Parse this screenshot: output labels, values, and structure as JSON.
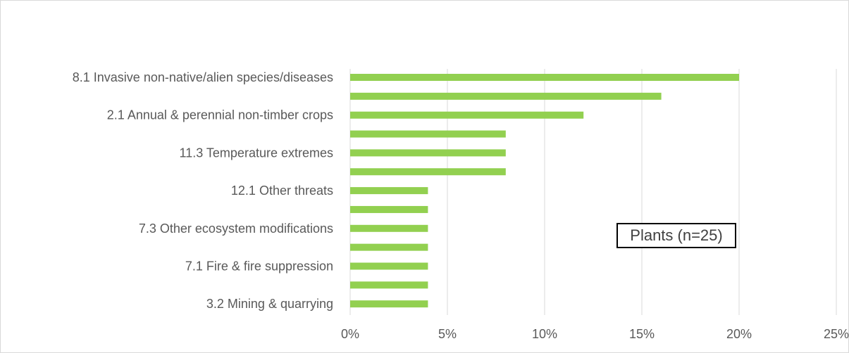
{
  "chart_data": {
    "type": "bar",
    "orientation": "horizontal",
    "categories": [
      "8.1 Invasive non-native/alien species/diseases",
      "",
      "2.1 Annual & perennial non-timber crops",
      "",
      "11.3 Temperature extremes",
      "",
      "12.1 Other threats",
      "",
      "7.3 Other ecosystem modifications",
      "",
      "7.1 Fire & fire suppression",
      "",
      "3.2 Mining & quarrying"
    ],
    "values": [
      20,
      16,
      12,
      8,
      8,
      8,
      4,
      4,
      4,
      4,
      4,
      4,
      4
    ],
    "xlim": [
      0,
      25
    ],
    "xticks": [
      "0%",
      "5%",
      "10%",
      "15%",
      "20%",
      "25%"
    ],
    "xtick_values": [
      0,
      5,
      10,
      15,
      20,
      25
    ],
    "grid": "vertical",
    "bar_color": "#92d050",
    "grid_color": "#d9d9d9",
    "annotation": "Plants (n=25)",
    "title": "",
    "xlabel": "",
    "ylabel": ""
  }
}
